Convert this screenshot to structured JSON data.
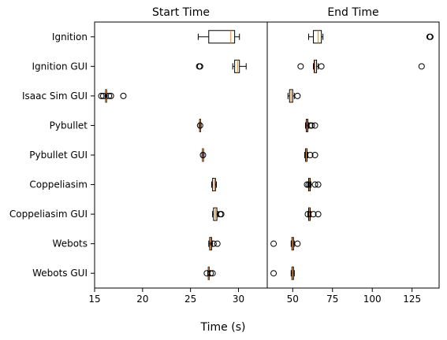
{
  "chart_data": {
    "type": "boxplot",
    "orientation": "horizontal",
    "xlabel": "Time (s)",
    "categories": [
      "Ignition",
      "Ignition GUI",
      "Isaac Sim GUI",
      "Pybullet",
      "Pybullet GUI",
      "Coppeliasim",
      "Coppeliasim GUI",
      "Webots",
      "Webots GUI"
    ],
    "panels": [
      {
        "title": "Start Time",
        "xlim": [
          15,
          33
        ],
        "xticks": [
          15,
          20,
          25,
          30
        ],
        "boxes": [
          {
            "category": "Ignition",
            "whislo": 25.8,
            "q1": 26.9,
            "med": 29.2,
            "q3": 29.6,
            "whishi": 30.1,
            "fliers": []
          },
          {
            "category": "Ignition GUI",
            "whislo": 29.4,
            "q1": 29.6,
            "med": 29.9,
            "q3": 30.1,
            "whishi": 30.8,
            "fliers": [
              25.9,
              26.0
            ]
          },
          {
            "category": "Isaac Sim GUI",
            "whislo": 16.1,
            "q1": 16.15,
            "med": 16.2,
            "q3": 16.25,
            "whishi": 16.3,
            "fliers": [
              15.7,
              15.9,
              16.5,
              16.7,
              18.0
            ]
          },
          {
            "category": "Pybullet",
            "whislo": 25.9,
            "q1": 25.95,
            "med": 26.0,
            "q3": 26.05,
            "whishi": 26.1,
            "fliers": [
              26.0
            ]
          },
          {
            "category": "Pybullet GUI",
            "whislo": 26.2,
            "q1": 26.25,
            "med": 26.3,
            "q3": 26.35,
            "whishi": 26.4,
            "fliers": [
              26.3
            ]
          },
          {
            "category": "Coppeliasim",
            "whislo": 27.2,
            "q1": 27.3,
            "med": 27.5,
            "q3": 27.6,
            "whishi": 27.7,
            "fliers": []
          },
          {
            "category": "Coppeliasim GUI",
            "whislo": 27.3,
            "q1": 27.4,
            "med": 27.6,
            "q3": 27.75,
            "whishi": 27.85,
            "fliers": [
              28.1,
              28.2
            ]
          },
          {
            "category": "Webots",
            "whislo": 26.9,
            "q1": 27.0,
            "med": 27.1,
            "q3": 27.2,
            "whishi": 27.3,
            "fliers": [
              27.4,
              27.8
            ]
          },
          {
            "category": "Webots GUI",
            "whislo": 26.8,
            "q1": 26.85,
            "med": 26.9,
            "q3": 26.95,
            "whishi": 27.0,
            "fliers": [
              26.7,
              27.1,
              27.3
            ]
          }
        ]
      },
      {
        "title": "End Time",
        "xlim": [
          34,
          142
        ],
        "xticks": [
          50,
          75,
          100,
          125
        ],
        "boxes": [
          {
            "category": "Ignition",
            "whislo": 60,
            "q1": 63,
            "med": 66,
            "q3": 68,
            "whishi": 69,
            "fliers": [
              136,
              136.5
            ]
          },
          {
            "category": "Ignition GUI",
            "whislo": 63,
            "q1": 63.5,
            "med": 64,
            "q3": 65,
            "whishi": 66,
            "fliers": [
              55,
              68,
              131
            ]
          },
          {
            "category": "Isaac Sim GUI",
            "whislo": 47,
            "q1": 48,
            "med": 49,
            "q3": 50,
            "whishi": 51,
            "fliers": [
              53
            ]
          },
          {
            "category": "Pybullet",
            "whislo": 58,
            "q1": 58.5,
            "med": 59,
            "q3": 59.5,
            "whishi": 60,
            "fliers": [
              61,
              62,
              64
            ]
          },
          {
            "category": "Pybullet GUI",
            "whislo": 57.5,
            "q1": 58,
            "med": 58.5,
            "q3": 59,
            "whishi": 59.5,
            "fliers": [
              61,
              64
            ]
          },
          {
            "category": "Coppeliasim",
            "whislo": 59.5,
            "q1": 60,
            "med": 60.5,
            "q3": 61,
            "whishi": 61.5,
            "fliers": [
              59,
              60,
              64,
              66
            ]
          },
          {
            "category": "Coppeliasim GUI",
            "whislo": 59.5,
            "q1": 60,
            "med": 60.5,
            "q3": 61,
            "whishi": 61.5,
            "fliers": [
              59.5,
              63,
              66
            ]
          },
          {
            "category": "Webots",
            "whislo": 49,
            "q1": 49.5,
            "med": 50,
            "q3": 50.5,
            "whishi": 51,
            "fliers": [
              38,
              53
            ]
          },
          {
            "category": "Webots GUI",
            "whislo": 49,
            "q1": 49.5,
            "med": 50,
            "q3": 50.5,
            "whishi": 51,
            "fliers": [
              38
            ]
          }
        ]
      }
    ]
  },
  "colors": {
    "median": "#ff7f0e",
    "box": "#000000",
    "background": "#ffffff"
  }
}
